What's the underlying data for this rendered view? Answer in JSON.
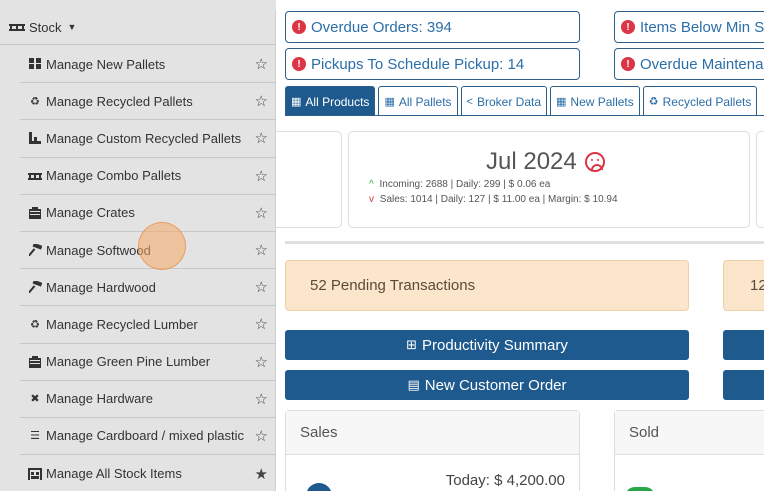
{
  "sidebar": {
    "header": {
      "label": "Stock"
    },
    "items": [
      {
        "label": "Manage New Pallets",
        "icon": "pallets-icon",
        "starred": false
      },
      {
        "label": "Manage Recycled Pallets",
        "icon": "recycle-icon",
        "starred": false
      },
      {
        "label": "Manage Custom Recycled Pallets",
        "icon": "custom-pallet-icon",
        "starred": false
      },
      {
        "label": "Manage Combo Pallets",
        "icon": "combo-pallet-icon",
        "starred": false
      },
      {
        "label": "Manage Crates",
        "icon": "crate-icon",
        "starred": false
      },
      {
        "label": "Manage Softwood",
        "icon": "hammer-icon",
        "starred": false
      },
      {
        "label": "Manage Hardwood",
        "icon": "hammer-icon",
        "starred": false
      },
      {
        "label": "Manage Recycled Lumber",
        "icon": "recycle-icon",
        "starred": false
      },
      {
        "label": "Manage Green Pine Lumber",
        "icon": "crate-icon",
        "starred": false
      },
      {
        "label": "Manage Hardware",
        "icon": "tools-icon",
        "starred": false
      },
      {
        "label": "Manage Cardboard / mixed plastic",
        "icon": "list-icon",
        "starred": false
      },
      {
        "label": "Manage All Stock Items",
        "icon": "warehouse-icon",
        "starred": true
      }
    ]
  },
  "alerts": {
    "overdue_orders": "Overdue Orders: 394",
    "items_below_min": "Items Below Min S",
    "pickups": "Pickups To Schedule Pickup: 14",
    "overdue_maintenance": "Overdue Maintenan"
  },
  "tabs": [
    {
      "label": "All Products",
      "active": true
    },
    {
      "label": "All Pallets",
      "active": false
    },
    {
      "label": "Broker Data",
      "active": false
    },
    {
      "label": "New Pallets",
      "active": false
    },
    {
      "label": "Recycled Pallets",
      "active": false
    }
  ],
  "month_card": {
    "title": "Jul 2024",
    "incoming": "Incoming: 2688 | Daily: 299 | $ 0.06 ea",
    "sales": "Sales: 1014 | Daily: 127 | $ 11.00 ea | Margin: $ 10.94"
  },
  "pending": {
    "label": "52 Pending Transactions",
    "stub": "12"
  },
  "buttons": {
    "productivity": "Productivity Summary",
    "new_order": "New Customer Order"
  },
  "panels": {
    "sales_title": "Sales",
    "sales_today": "Today: $ 4,200.00",
    "sold_title": "Sold"
  },
  "colors": {
    "primary": "#1f5a8e",
    "danger": "#dc3545",
    "pending_bg": "#fbe6cc"
  }
}
